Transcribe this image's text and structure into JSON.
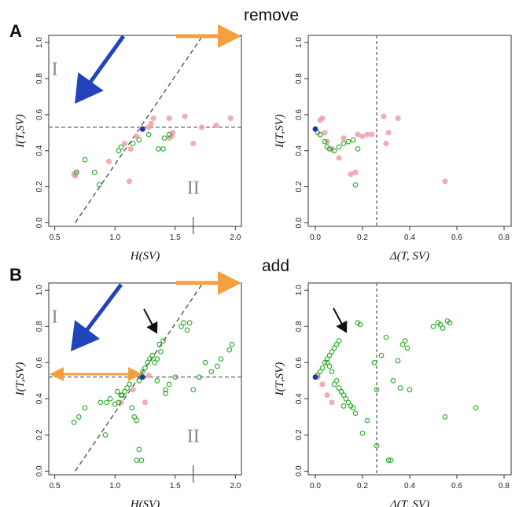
{
  "rows": [
    {
      "letter": "A",
      "title": "remove"
    },
    {
      "letter": "B",
      "title": "add"
    }
  ],
  "colors": {
    "pink": "#f0a0a8",
    "green": "#22aa22",
    "blue_point": "#2233aa",
    "blue_arrow": "#2244bb",
    "orange_arrow": "#f4a040",
    "dashed": "#555555"
  },
  "chart_data": [
    {
      "type": "scatter",
      "panel": "A-left",
      "xlabel": "H(SV)",
      "ylabel": "I(T,SV)",
      "xlim": [
        0.45,
        2.05
      ],
      "ylim": [
        -0.02,
        1.04
      ],
      "xticks": [
        "0.5",
        "1.0",
        "1.5",
        "2.0"
      ],
      "yticks": [
        "0.0",
        "0.2",
        "0.4",
        "0.6",
        "0.8",
        "1.0"
      ],
      "regions": [
        "I",
        "II"
      ],
      "hline": 0.53,
      "diagonal": [
        [
          0.67,
          0.0
        ],
        [
          1.73,
          1.04
        ]
      ],
      "series": [
        {
          "style": "pink-filled",
          "x": [
            0.66,
            0.68,
            0.67,
            0.95,
            1.08,
            1.12,
            1.13,
            1.18,
            1.22,
            1.28,
            1.3,
            1.32,
            1.45,
            1.45,
            1.47,
            1.48,
            1.58,
            1.65,
            1.72,
            1.84,
            1.96
          ],
          "y": [
            0.27,
            0.28,
            0.26,
            0.34,
            0.44,
            0.23,
            0.41,
            0.48,
            0.52,
            0.53,
            0.55,
            0.58,
            0.58,
            0.47,
            0.48,
            0.5,
            0.59,
            0.44,
            0.53,
            0.54,
            0.58
          ]
        },
        {
          "style": "green-open",
          "x": [
            0.68,
            0.75,
            0.83,
            0.87,
            1.03,
            1.05,
            1.15,
            1.2,
            1.28,
            1.36,
            1.4,
            1.41,
            1.45
          ],
          "y": [
            0.28,
            0.35,
            0.28,
            0.21,
            0.4,
            0.42,
            0.44,
            0.46,
            0.49,
            0.41,
            0.41,
            0.47,
            0.49
          ]
        },
        {
          "style": "blue-filled",
          "x": [
            1.23
          ],
          "y": [
            0.52
          ]
        }
      ]
    },
    {
      "type": "scatter",
      "panel": "A-right",
      "xlabel": "Δ(T, SV)",
      "ylabel": "I(T,SV)",
      "xlim": [
        -0.03,
        0.83
      ],
      "ylim": [
        -0.02,
        1.04
      ],
      "xticks": [
        "0.0",
        "0.2",
        "0.4",
        "0.6",
        "0.8"
      ],
      "yticks": [
        "0.0",
        "0.2",
        "0.4",
        "0.6",
        "0.8",
        "1.0"
      ],
      "vline": 0.26,
      "series": [
        {
          "style": "pink-filled",
          "x": [
            0.02,
            0.03,
            0.04,
            0.05,
            0.07,
            0.1,
            0.12,
            0.15,
            0.17,
            0.18,
            0.2,
            0.22,
            0.24,
            0.29,
            0.3,
            0.31,
            0.35,
            0.55
          ],
          "y": [
            0.57,
            0.58,
            0.5,
            0.45,
            0.41,
            0.36,
            0.47,
            0.27,
            0.28,
            0.49,
            0.48,
            0.49,
            0.49,
            0.59,
            0.44,
            0.5,
            0.58,
            0.23
          ]
        },
        {
          "style": "green-open",
          "x": [
            0.01,
            0.02,
            0.04,
            0.05,
            0.06,
            0.08,
            0.1,
            0.12,
            0.14,
            0.16,
            0.17,
            0.18
          ],
          "y": [
            0.5,
            0.49,
            0.45,
            0.42,
            0.41,
            0.4,
            0.42,
            0.44,
            0.45,
            0.46,
            0.21,
            0.41
          ]
        },
        {
          "style": "blue-filled",
          "x": [
            0.0
          ],
          "y": [
            0.52
          ]
        }
      ]
    },
    {
      "type": "scatter",
      "panel": "B-left",
      "xlabel": "H(SV)",
      "ylabel": "I(T,SV)",
      "xlim": [
        0.45,
        2.05
      ],
      "ylim": [
        -0.02,
        1.04
      ],
      "xticks": [
        "0.5",
        "1.0",
        "1.5",
        "2.0"
      ],
      "yticks": [
        "0.0",
        "0.2",
        "0.4",
        "0.6",
        "0.8",
        "1.0"
      ],
      "regions": [
        "I",
        "II"
      ],
      "hline": 0.52,
      "diagonal": [
        [
          0.67,
          0.0
        ],
        [
          1.73,
          1.04
        ]
      ],
      "series": [
        {
          "style": "pink-filled",
          "x": [
            1.05,
            1.15,
            1.25,
            1.28
          ],
          "y": [
            0.38,
            0.45,
            0.38,
            0.53
          ]
        },
        {
          "style": "green-open",
          "x": [
            0.66,
            0.7,
            0.75,
            0.88,
            0.92,
            0.96,
            1.0,
            1.03,
            1.06,
            1.08,
            1.1,
            1.12,
            1.14,
            1.16,
            1.18,
            1.2,
            1.22,
            1.23,
            1.25,
            1.27,
            1.29,
            1.31,
            1.33,
            1.35,
            1.37,
            1.4,
            1.42,
            1.45,
            1.5,
            1.55,
            1.57,
            1.6,
            1.62,
            1.65,
            1.7,
            1.75,
            1.8,
            1.85,
            1.88,
            1.95,
            1.97,
            1.2,
            1.22,
            1.18,
            1.05,
            1.02,
            0.93,
            1.35,
            1.38,
            1.42
          ],
          "y": [
            0.27,
            0.3,
            0.35,
            0.38,
            0.2,
            0.4,
            0.37,
            0.38,
            0.42,
            0.44,
            0.46,
            0.48,
            0.35,
            0.3,
            0.28,
            0.5,
            0.52,
            0.55,
            0.57,
            0.6,
            0.62,
            0.64,
            0.6,
            0.62,
            0.7,
            0.72,
            0.45,
            0.48,
            0.52,
            0.8,
            0.82,
            0.78,
            0.82,
            0.45,
            0.52,
            0.6,
            0.55,
            0.58,
            0.62,
            0.67,
            0.7,
            0.12,
            0.06,
            0.06,
            0.42,
            0.44,
            0.38,
            0.5,
            0.66,
            0.43
          ]
        },
        {
          "style": "blue-filled",
          "x": [
            1.23
          ],
          "y": [
            0.52
          ]
        }
      ]
    },
    {
      "type": "scatter",
      "panel": "B-right",
      "xlabel": "Δ(T, SV)",
      "ylabel": "I(T,SV)",
      "xlim": [
        -0.03,
        0.83
      ],
      "ylim": [
        -0.02,
        1.04
      ],
      "xticks": [
        "0.0",
        "0.2",
        "0.4",
        "0.6",
        "0.8"
      ],
      "yticks": [
        "0.0",
        "0.2",
        "0.4",
        "0.6",
        "0.8",
        "1.0"
      ],
      "vline": 0.26,
      "series": [
        {
          "style": "pink-filled",
          "x": [
            0.01,
            0.03,
            0.05,
            0.07
          ],
          "y": [
            0.52,
            0.48,
            0.42,
            0.38
          ]
        },
        {
          "style": "green-open",
          "x": [
            0.01,
            0.02,
            0.03,
            0.04,
            0.05,
            0.06,
            0.07,
            0.08,
            0.09,
            0.1,
            0.11,
            0.12,
            0.13,
            0.14,
            0.15,
            0.16,
            0.17,
            0.18,
            0.19,
            0.2,
            0.22,
            0.25,
            0.26,
            0.28,
            0.3,
            0.31,
            0.32,
            0.33,
            0.35,
            0.36,
            0.37,
            0.38,
            0.39,
            0.4,
            0.5,
            0.52,
            0.53,
            0.54,
            0.55,
            0.56,
            0.57,
            0.68,
            0.26,
            0.1,
            0.11,
            0.12,
            0.09,
            0.08,
            0.07,
            0.06,
            0.05
          ],
          "y": [
            0.53,
            0.55,
            0.57,
            0.6,
            0.62,
            0.64,
            0.66,
            0.68,
            0.7,
            0.72,
            0.44,
            0.42,
            0.4,
            0.38,
            0.36,
            0.35,
            0.32,
            0.82,
            0.81,
            0.21,
            0.28,
            0.6,
            0.45,
            0.64,
            0.74,
            0.06,
            0.06,
            0.5,
            0.61,
            0.46,
            0.7,
            0.72,
            0.68,
            0.45,
            0.8,
            0.82,
            0.81,
            0.79,
            0.3,
            0.83,
            0.82,
            0.35,
            0.14,
            0.46,
            0.44,
            0.36,
            0.5,
            0.48,
            0.55,
            0.58,
            0.6
          ]
        },
        {
          "style": "blue-filled",
          "x": [
            0.0
          ],
          "y": [
            0.52
          ]
        }
      ]
    }
  ]
}
